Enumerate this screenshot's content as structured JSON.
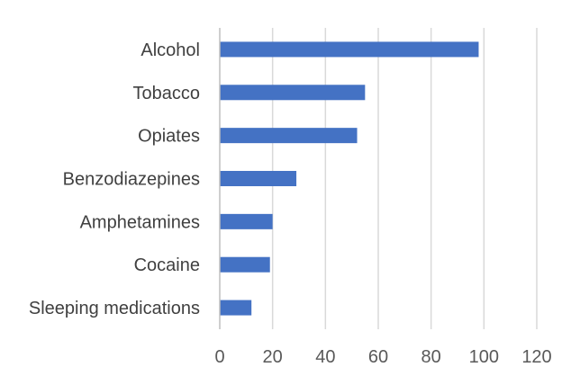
{
  "chart_data": {
    "type": "bar",
    "orientation": "horizontal",
    "categories": [
      "Alcohol",
      "Tobacco",
      "Opiates",
      "Benzodiazepines",
      "Amphetamines",
      "Cocaine",
      "Sleeping medications"
    ],
    "values": [
      98,
      55,
      52,
      29,
      20,
      19,
      12
    ],
    "xlim": [
      0,
      120
    ],
    "xticks": [
      "0",
      "20",
      "40",
      "60",
      "80",
      "100",
      "120"
    ],
    "grid": true,
    "legend": "none",
    "bar_color": "#4472c4",
    "title": "",
    "xlabel": "",
    "ylabel": ""
  }
}
